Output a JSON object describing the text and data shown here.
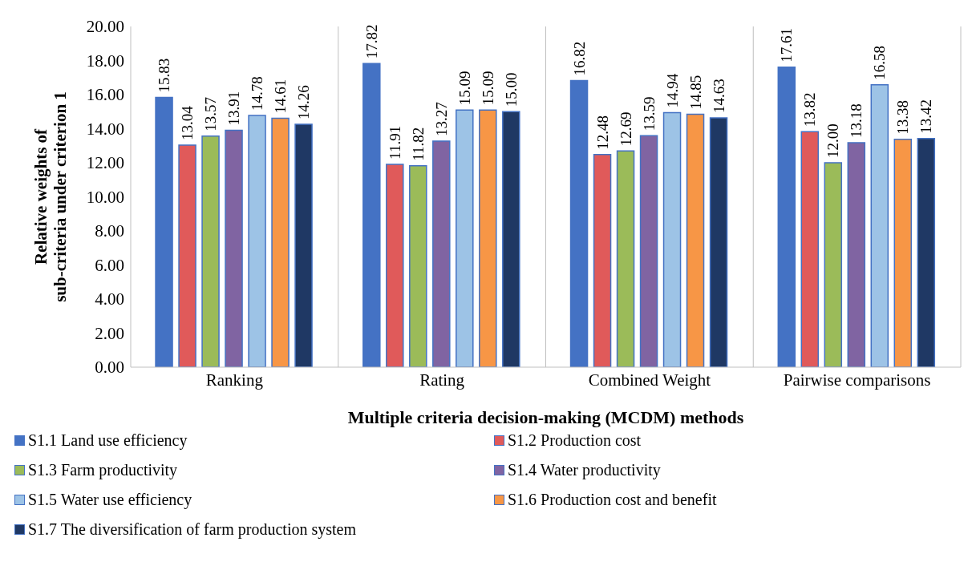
{
  "chart_data": {
    "type": "bar",
    "xlabel": "Multiple criteria decision-making (MCDM) methods",
    "ylabel": "Relative weights of sub-criteria under criterion 1",
    "categories": [
      "Ranking",
      "Rating",
      "Combined Weight",
      "Pairwise comparisons"
    ],
    "series": [
      {
        "name": "S1.1 Land use efficiency",
        "color": "#4472c4",
        "values": [
          15.83,
          17.82,
          16.82,
          17.61
        ],
        "value_labels": [
          "15.83",
          "17.82",
          "16.82",
          "17.61"
        ]
      },
      {
        "name": "S1.2 Production cost",
        "color": "#e05a5a",
        "values": [
          13.04,
          11.91,
          12.48,
          13.82
        ],
        "value_labels": [
          "13.04",
          "11.91",
          "12.48",
          "13.82"
        ]
      },
      {
        "name": "S1.3 Farm productivity",
        "color": "#9bbb59",
        "values": [
          13.57,
          11.82,
          12.69,
          12.0
        ],
        "value_labels": [
          "13.57",
          "11.82",
          "12.69",
          "12.00"
        ]
      },
      {
        "name": "S1.4 Water productivity",
        "color": "#8064a2",
        "values": [
          13.91,
          13.27,
          13.59,
          13.18
        ],
        "value_labels": [
          "13.91",
          "13.27",
          "13.59",
          "13.18"
        ]
      },
      {
        "name": "S1.5 Water use efficiency",
        "color": "#9dc3e6",
        "values": [
          14.78,
          15.09,
          14.94,
          16.58
        ],
        "value_labels": [
          "14.78",
          "15.09",
          "14.94",
          "16.58"
        ]
      },
      {
        "name": "S1.6 Production cost and benefit",
        "color": "#f79646",
        "values": [
          14.61,
          15.09,
          14.85,
          13.38
        ],
        "value_labels": [
          "14.61",
          "15.09",
          "14.85",
          "13.38"
        ]
      },
      {
        "name": "S1.7 The diversification of farm production system",
        "color": "#1f3864",
        "values": [
          14.26,
          15.0,
          14.63,
          13.42
        ],
        "value_labels": [
          "14.26",
          "15.00",
          "14.63",
          "13.42"
        ]
      }
    ],
    "ylim": [
      0,
      20
    ],
    "yticks": [
      {
        "value": 0,
        "label": "0.00"
      },
      {
        "value": 2,
        "label": "2.00"
      },
      {
        "value": 4,
        "label": "4.00"
      },
      {
        "value": 6,
        "label": "6.00"
      },
      {
        "value": 8,
        "label": "8.00"
      },
      {
        "value": 10,
        "label": "10.00"
      },
      {
        "value": 12,
        "label": "12.00"
      },
      {
        "value": 14,
        "label": "14.00"
      },
      {
        "value": 16,
        "label": "16.00"
      },
      {
        "value": 18,
        "label": "18.00"
      },
      {
        "value": 20,
        "label": "20.00"
      }
    ],
    "grid": "x",
    "legend": "bottom"
  }
}
